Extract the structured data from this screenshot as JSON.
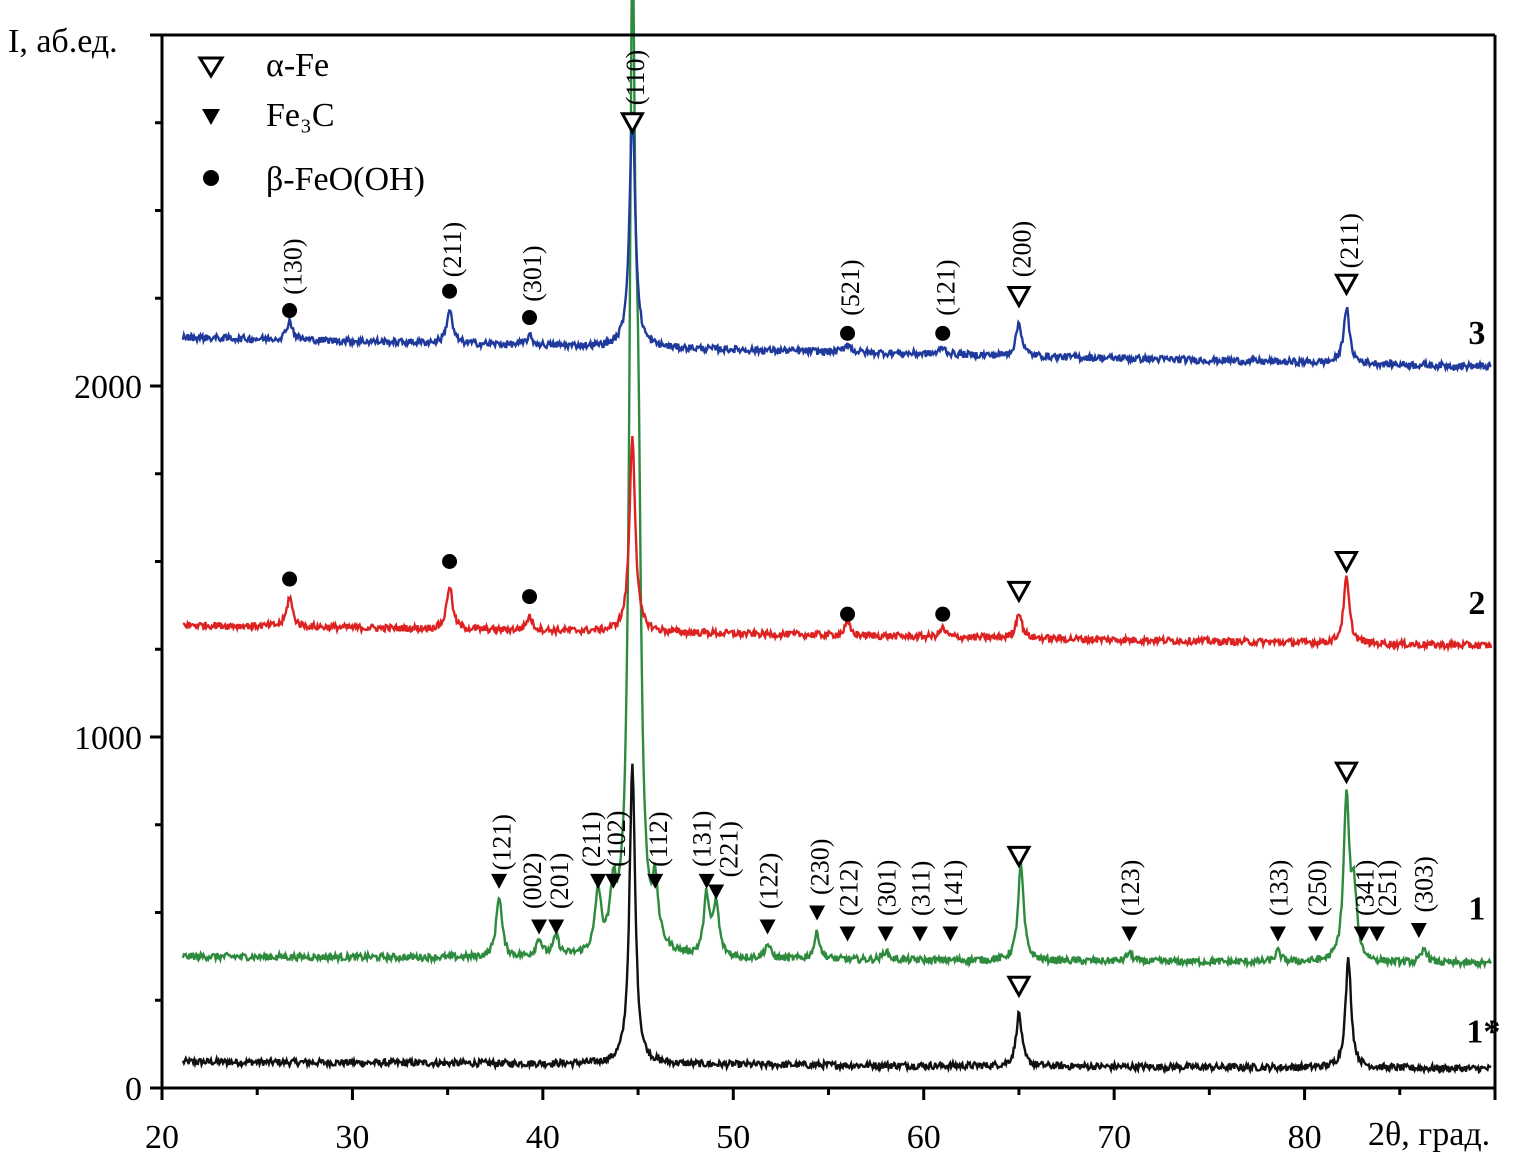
{
  "chart_data": {
    "type": "line",
    "title": "",
    "xlabel": "2θ, град.",
    "ylabel": "I, аб.ед.",
    "xlim": [
      20,
      90
    ],
    "ylim": [
      0,
      3000
    ],
    "grid": false,
    "x_ticks": [
      20,
      30,
      40,
      50,
      60,
      70,
      80
    ],
    "y_ticks": [
      0,
      1000,
      2000
    ],
    "legend": {
      "position": "top-left",
      "entries": [
        {
          "marker": "open-down-triangle",
          "label": "α-Fe"
        },
        {
          "marker": "filled-down-triangle",
          "label": "Fe₃C"
        },
        {
          "marker": "filled-circle",
          "label": "β-FeO(OH)"
        }
      ]
    },
    "series": [
      {
        "name": "1*",
        "color": "#111111",
        "baseline": 75,
        "baseline_end": 55,
        "noise": 10,
        "peaks": [
          {
            "x": 44.7,
            "h": 850
          },
          {
            "x": 65.0,
            "h": 150
          },
          {
            "x": 82.3,
            "h": 310
          }
        ],
        "markers": [
          {
            "x": 65.0,
            "y": 290,
            "type": "open-down-triangle"
          }
        ]
      },
      {
        "name": "1",
        "color": "#2e8b3e",
        "baseline": 375,
        "baseline_end": 355,
        "noise": 10,
        "peaks": [
          {
            "x": 37.7,
            "h": 175
          },
          {
            "x": 39.8,
            "h": 50
          },
          {
            "x": 40.7,
            "h": 55
          },
          {
            "x": 42.9,
            "h": 170
          },
          {
            "x": 43.7,
            "h": 150
          },
          {
            "x": 44.7,
            "h": 2600
          },
          {
            "x": 45.0,
            "h": 1100
          },
          {
            "x": 45.9,
            "h": 160
          },
          {
            "x": 48.6,
            "h": 170
          },
          {
            "x": 49.1,
            "h": 145
          },
          {
            "x": 51.8,
            "h": 40
          },
          {
            "x": 54.4,
            "h": 75
          },
          {
            "x": 58.0,
            "h": 25
          },
          {
            "x": 65.1,
            "h": 270
          },
          {
            "x": 70.8,
            "h": 25
          },
          {
            "x": 78.6,
            "h": 30
          },
          {
            "x": 82.2,
            "h": 460
          },
          {
            "x": 82.6,
            "h": 180
          },
          {
            "x": 86.3,
            "h": 40
          }
        ],
        "markers": [
          {
            "x": 65.0,
            "y": 660,
            "type": "open-down-triangle"
          },
          {
            "x": 82.2,
            "y": 900,
            "type": "open-down-triangle"
          },
          {
            "x": 37.7,
            "y": 590,
            "type": "filled-down-triangle"
          },
          {
            "x": 39.8,
            "y": 460,
            "type": "filled-down-triangle"
          },
          {
            "x": 40.7,
            "y": 460,
            "type": "filled-down-triangle"
          },
          {
            "x": 42.9,
            "y": 590,
            "type": "filled-down-triangle"
          },
          {
            "x": 43.7,
            "y": 590,
            "type": "filled-down-triangle"
          },
          {
            "x": 45.9,
            "y": 590,
            "type": "filled-down-triangle"
          },
          {
            "x": 48.6,
            "y": 590,
            "type": "filled-down-triangle"
          },
          {
            "x": 49.1,
            "y": 560,
            "type": "filled-down-triangle"
          },
          {
            "x": 51.8,
            "y": 460,
            "type": "filled-down-triangle"
          },
          {
            "x": 54.4,
            "y": 500,
            "type": "filled-down-triangle"
          },
          {
            "x": 56.0,
            "y": 440,
            "type": "filled-down-triangle"
          },
          {
            "x": 58.0,
            "y": 440,
            "type": "filled-down-triangle"
          },
          {
            "x": 59.8,
            "y": 440,
            "type": "filled-down-triangle"
          },
          {
            "x": 61.4,
            "y": 440,
            "type": "filled-down-triangle"
          },
          {
            "x": 70.8,
            "y": 440,
            "type": "filled-down-triangle"
          },
          {
            "x": 78.6,
            "y": 440,
            "type": "filled-down-triangle"
          },
          {
            "x": 80.6,
            "y": 440,
            "type": "filled-down-triangle"
          },
          {
            "x": 83.0,
            "y": 440,
            "type": "filled-down-triangle"
          },
          {
            "x": 83.8,
            "y": 440,
            "type": "filled-down-triangle"
          },
          {
            "x": 86.0,
            "y": 450,
            "type": "filled-down-triangle"
          }
        ],
        "labels": [
          {
            "x": 38.0,
            "y": 620,
            "text": "(121)"
          },
          {
            "x": 39.6,
            "y": 510,
            "text": "(002)"
          },
          {
            "x": 41.0,
            "y": 510,
            "text": "(201)"
          },
          {
            "x": 42.7,
            "y": 630,
            "text": "(211)"
          },
          {
            "x": 44.0,
            "y": 630,
            "text": "(102)"
          },
          {
            "x": 46.2,
            "y": 630,
            "text": "(112)"
          },
          {
            "x": 48.5,
            "y": 630,
            "text": "(131)"
          },
          {
            "x": 49.9,
            "y": 600,
            "text": "(221)"
          },
          {
            "x": 52.0,
            "y": 510,
            "text": "(122)"
          },
          {
            "x": 54.7,
            "y": 550,
            "text": "(230)"
          },
          {
            "x": 56.2,
            "y": 490,
            "text": "(212)"
          },
          {
            "x": 58.2,
            "y": 490,
            "text": "(301)"
          },
          {
            "x": 60.0,
            "y": 490,
            "text": "(311)"
          },
          {
            "x": 61.7,
            "y": 490,
            "text": "(141)"
          },
          {
            "x": 71.0,
            "y": 490,
            "text": "(123)"
          },
          {
            "x": 78.8,
            "y": 490,
            "text": "(133)"
          },
          {
            "x": 80.8,
            "y": 490,
            "text": "(250)"
          },
          {
            "x": 83.3,
            "y": 490,
            "text": "(341)"
          },
          {
            "x": 84.5,
            "y": 490,
            "text": "(251)"
          },
          {
            "x": 86.4,
            "y": 500,
            "text": "(303)"
          }
        ]
      },
      {
        "name": "2",
        "color": "#dd2222",
        "baseline": 1320,
        "baseline_end": 1260,
        "noise": 10,
        "peaks": [
          {
            "x": 26.7,
            "h": 85
          },
          {
            "x": 35.1,
            "h": 125
          },
          {
            "x": 39.3,
            "h": 40
          },
          {
            "x": 44.7,
            "h": 560
          },
          {
            "x": 56.0,
            "h": 35
          },
          {
            "x": 61.0,
            "h": 25
          },
          {
            "x": 65.0,
            "h": 75
          },
          {
            "x": 82.2,
            "h": 185
          }
        ],
        "markers": [
          {
            "x": 26.7,
            "y": 1450,
            "type": "filled-circle"
          },
          {
            "x": 35.1,
            "y": 1500,
            "type": "filled-circle"
          },
          {
            "x": 39.3,
            "y": 1400,
            "type": "filled-circle"
          },
          {
            "x": 56.0,
            "y": 1350,
            "type": "filled-circle"
          },
          {
            "x": 61.0,
            "y": 1350,
            "type": "filled-circle"
          },
          {
            "x": 65.0,
            "y": 1415,
            "type": "open-down-triangle"
          },
          {
            "x": 82.2,
            "y": 1500,
            "type": "open-down-triangle"
          }
        ]
      },
      {
        "name": "3",
        "color": "#1f3a9c",
        "baseline": 2140,
        "baseline_end": 2055,
        "noise": 10,
        "peaks": [
          {
            "x": 26.7,
            "h": 55
          },
          {
            "x": 35.1,
            "h": 95
          },
          {
            "x": 39.3,
            "h": 25
          },
          {
            "x": 44.7,
            "h": 680
          },
          {
            "x": 56.0,
            "h": 25
          },
          {
            "x": 61.0,
            "h": 20
          },
          {
            "x": 65.0,
            "h": 95
          },
          {
            "x": 82.2,
            "h": 160
          }
        ],
        "markers": [
          {
            "x": 26.7,
            "y": 2215,
            "type": "filled-circle"
          },
          {
            "x": 35.1,
            "y": 2270,
            "type": "filled-circle"
          },
          {
            "x": 39.3,
            "y": 2195,
            "type": "filled-circle"
          },
          {
            "x": 56.0,
            "y": 2150,
            "type": "filled-circle"
          },
          {
            "x": 61.0,
            "y": 2150,
            "type": "filled-circle"
          },
          {
            "x": 65.0,
            "y": 2255,
            "type": "open-down-triangle"
          },
          {
            "x": 82.2,
            "y": 2290,
            "type": "open-down-triangle"
          },
          {
            "x": 44.7,
            "y": 2750,
            "type": "open-down-triangle"
          }
        ],
        "labels": [
          {
            "x": 27.0,
            "y": 2260,
            "text": "(130)"
          },
          {
            "x": 35.4,
            "y": 2310,
            "text": "(211)"
          },
          {
            "x": 39.6,
            "y": 2240,
            "text": "(301)"
          },
          {
            "x": 45.0,
            "y": 2800,
            "text": "(110)"
          },
          {
            "x": 56.3,
            "y": 2200,
            "text": "(521)"
          },
          {
            "x": 61.3,
            "y": 2200,
            "text": "(121)"
          },
          {
            "x": 65.3,
            "y": 2310,
            "text": "(200)"
          },
          {
            "x": 82.5,
            "y": 2335,
            "text": "(211)"
          }
        ]
      }
    ],
    "curve_labels": [
      {
        "text": "3",
        "x": 88.6,
        "y": 2120
      },
      {
        "text": "2",
        "x": 88.6,
        "y": 1350
      },
      {
        "text": "1",
        "x": 88.6,
        "y": 480
      },
      {
        "text": "1*",
        "x": 88.5,
        "y": 130
      }
    ]
  }
}
